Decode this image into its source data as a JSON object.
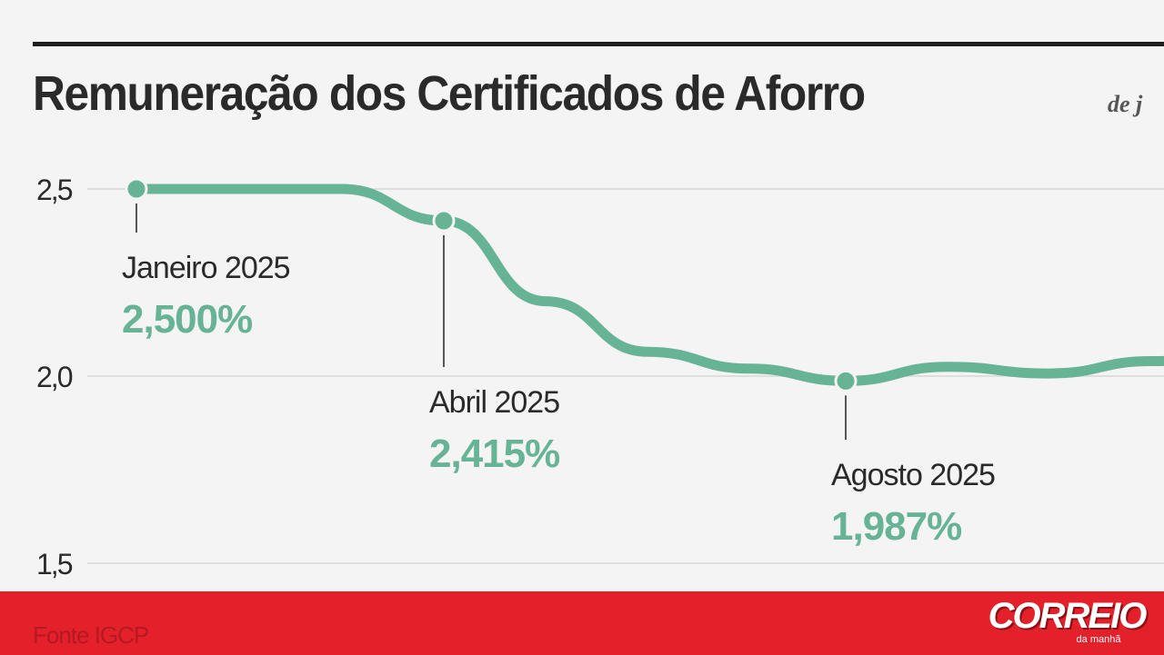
{
  "header": {
    "title": "Remuneração dos Certificados de Aforro",
    "subtitle": "de j"
  },
  "chart_data": {
    "type": "line",
    "title": "Remuneração dos Certificados de Aforro",
    "ylim": [
      1.5,
      2.5
    ],
    "yticks": [
      "2,5",
      "2,0",
      "1,5"
    ],
    "ytick_values": [
      2.5,
      2.0,
      1.5
    ],
    "grid": true,
    "line_color": "#67b395",
    "series": [
      {
        "x": [
          1,
          2,
          3,
          4,
          5,
          6,
          7,
          8,
          9,
          10,
          11,
          12
        ],
        "values": [
          2.5,
          2.5,
          2.5,
          2.415,
          2.2,
          2.065,
          2.02,
          1.987,
          2.025,
          2.007,
          2.04,
          2.055
        ]
      }
    ],
    "annotations": [
      {
        "index": 0,
        "label": "Janeiro 2025",
        "value": "2,500%"
      },
      {
        "index": 3,
        "label": "Abril 2025",
        "value": "2,415%"
      },
      {
        "index": 7,
        "label": "Agosto 2025",
        "value": "1,987%"
      }
    ]
  },
  "footer": {
    "source": "Fonte IGCP",
    "logo_main": "CORREIO",
    "logo_sub": "da manhã",
    "bar_color": "#e4202a"
  }
}
